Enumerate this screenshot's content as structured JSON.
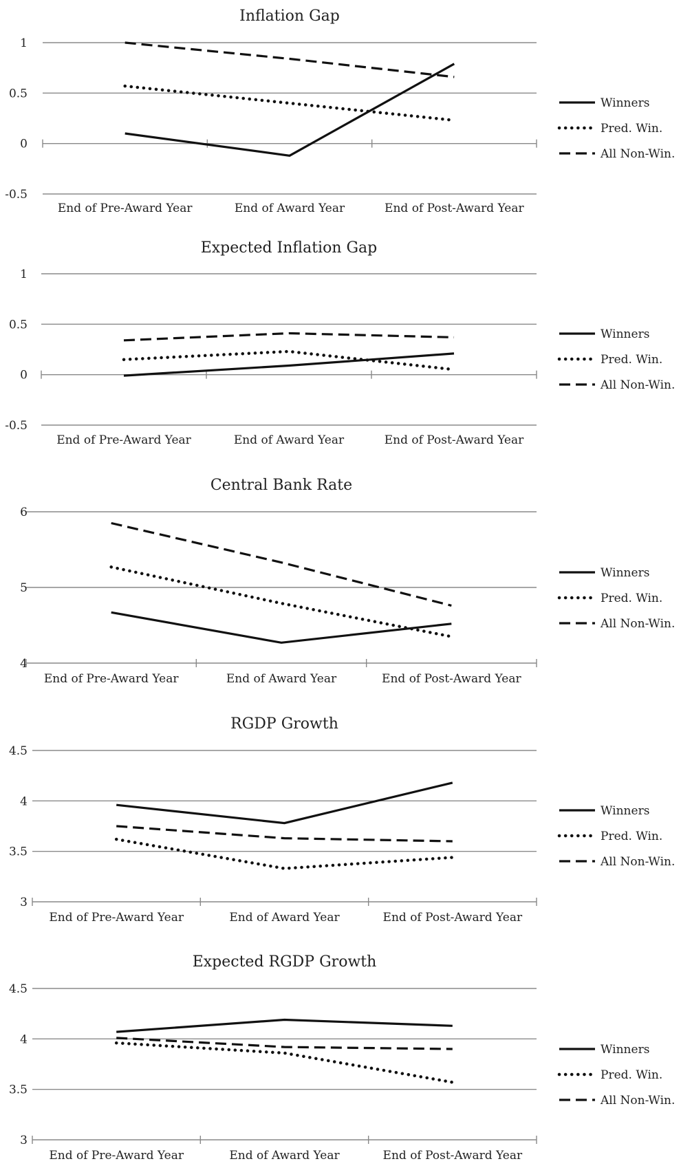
{
  "legend_labels": {
    "winners": "Winners",
    "pred": "Pred. Win.",
    "nonwin": "All Non-Win."
  },
  "line_color": "#111111",
  "chart_data": [
    {
      "type": "line",
      "title": "Inflation Gap",
      "categories": [
        "End of Pre-Award Year",
        "End of Award Year",
        "End of Post-Award Year"
      ],
      "yticks": [
        "1",
        "0.5",
        "0",
        "-0.5"
      ],
      "ylim": [
        -0.5,
        1
      ],
      "legend": "right",
      "series": [
        {
          "name": "Winners",
          "style": "solid",
          "values": [
            0.1,
            -0.12,
            0.79
          ]
        },
        {
          "name": "Pred. Win.",
          "style": "dotted",
          "values": [
            0.57,
            0.4,
            0.23
          ]
        },
        {
          "name": "All Non-Win.",
          "style": "dashed",
          "values": [
            1.0,
            0.84,
            0.66
          ]
        }
      ]
    },
    {
      "type": "line",
      "title": "Expected Inflation Gap",
      "categories": [
        "End of Pre-Award Year",
        "End of Award Year",
        "End of Post-Award Year"
      ],
      "yticks": [
        "1",
        "0.5",
        "0",
        "-0.5"
      ],
      "ylim": [
        -0.5,
        1
      ],
      "legend": "right",
      "series": [
        {
          "name": "Winners",
          "style": "solid",
          "values": [
            -0.01,
            0.09,
            0.21
          ]
        },
        {
          "name": "Pred. Win.",
          "style": "dotted",
          "values": [
            0.15,
            0.23,
            0.05
          ]
        },
        {
          "name": "All Non-Win.",
          "style": "dashed",
          "values": [
            0.34,
            0.41,
            0.37
          ]
        }
      ]
    },
    {
      "type": "line",
      "title": "Central Bank Rate",
      "categories": [
        "End of Pre-Award Year",
        "End of Award Year",
        "End of Post-Award Year"
      ],
      "yticks": [
        "6",
        "5",
        "4"
      ],
      "ylim": [
        4,
        6
      ],
      "legend": "right",
      "series": [
        {
          "name": "Winners",
          "style": "solid",
          "values": [
            4.67,
            4.27,
            4.52
          ]
        },
        {
          "name": "Pred. Win.",
          "style": "dotted",
          "values": [
            5.27,
            4.79,
            4.35
          ]
        },
        {
          "name": "All Non-Win.",
          "style": "dashed",
          "values": [
            5.85,
            5.33,
            4.76
          ]
        }
      ]
    },
    {
      "type": "line",
      "title": "RGDP Growth",
      "categories": [
        "End of Pre-Award Year",
        "End of Award Year",
        "End of Post-Award Year"
      ],
      "yticks": [
        "4.5",
        "4",
        "3.5",
        "3"
      ],
      "ylim": [
        3,
        4.5
      ],
      "legend": "right",
      "series": [
        {
          "name": "Winners",
          "style": "solid",
          "values": [
            3.96,
            3.78,
            4.18
          ]
        },
        {
          "name": "Pred. Win.",
          "style": "dotted",
          "values": [
            3.62,
            3.33,
            3.44
          ]
        },
        {
          "name": "All Non-Win.",
          "style": "dashed",
          "values": [
            3.75,
            3.63,
            3.6
          ]
        }
      ]
    },
    {
      "type": "line",
      "title": "Expected RGDP Growth",
      "categories": [
        "End of Pre-Award Year",
        "End of Award Year",
        "End of Post-Award Year"
      ],
      "yticks": [
        "4.5",
        "4",
        "3.5",
        "3"
      ],
      "ylim": [
        3,
        4.5
      ],
      "legend": "right",
      "series": [
        {
          "name": "Winners",
          "style": "solid",
          "values": [
            4.07,
            4.19,
            4.13
          ]
        },
        {
          "name": "Pred. Win.",
          "style": "dotted",
          "values": [
            3.96,
            3.86,
            3.57
          ]
        },
        {
          "name": "All Non-Win.",
          "style": "dashed",
          "values": [
            4.01,
            3.92,
            3.9
          ]
        }
      ]
    }
  ]
}
